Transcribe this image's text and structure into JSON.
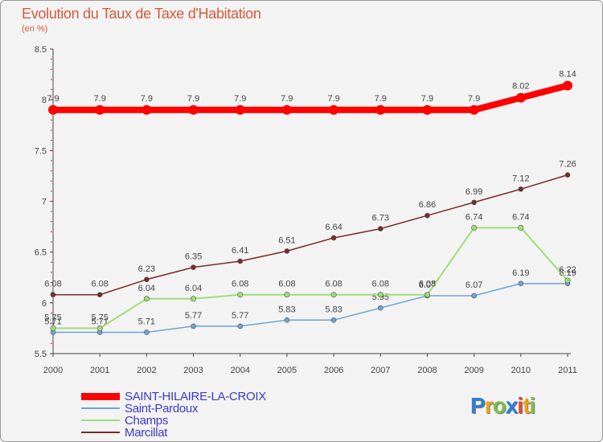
{
  "title": "Evolution du Taux de Taxe d'Habitation",
  "unit_label": "(en %)",
  "logo": [
    "P",
    "r",
    "o",
    "x",
    "i",
    "t",
    "i"
  ],
  "logo_colors": [
    "#2f7fd8",
    "#f2a01a",
    "#7cc04a",
    "#2f7fd8",
    "#e8463a",
    "#f2a01a",
    "#7cc04a"
  ],
  "chart_data": {
    "type": "line",
    "x": [
      "2000",
      "2001",
      "2002",
      "2003",
      "2004",
      "2005",
      "2006",
      "2007",
      "2008",
      "2009",
      "2010",
      "2011"
    ],
    "ylim": [
      5.5,
      8.5
    ],
    "yticks": [
      "5.5",
      "6",
      "6.5",
      "7",
      "7.5",
      "8",
      "8.5"
    ],
    "grid": false,
    "legend_position": "bottom-left",
    "series": [
      {
        "name": "SAINT-HILAIRE-LA-CROIX",
        "color": "#ff0000",
        "values": [
          7.9,
          7.9,
          7.9,
          7.9,
          7.9,
          7.9,
          7.9,
          7.9,
          7.9,
          7.9,
          8.02,
          8.14
        ],
        "labels": [
          "7.9",
          "7.9",
          "7.9",
          "7.9",
          "7.9",
          "7.9",
          "7.9",
          "7.9",
          "7.9",
          "7.9",
          "8.02",
          "8.14"
        ]
      },
      {
        "name": "Saint-Pardoux",
        "color": "#6fa3d2",
        "values": [
          5.71,
          5.71,
          5.71,
          5.77,
          5.77,
          5.83,
          5.83,
          5.95,
          6.07,
          6.07,
          6.19,
          6.19
        ],
        "labels": [
          "5.71",
          "5.71",
          "5.71",
          "5.77",
          "5.77",
          "5.83",
          "5.83",
          "5.95",
          "6.07",
          "6.07",
          "6.19",
          "6.19"
        ]
      },
      {
        "name": "Champs",
        "color": "#9ede77",
        "values": [
          5.75,
          5.75,
          6.04,
          6.04,
          6.08,
          6.08,
          6.08,
          6.08,
          6.08,
          6.74,
          6.74,
          6.22
        ],
        "labels": [
          "5.75",
          "5.75",
          "6.04",
          "6.04",
          "6.08",
          "6.08",
          "6.08",
          "6.08",
          "6.08",
          "6.74",
          "6.74",
          "6.22"
        ]
      },
      {
        "name": "Marcillat",
        "color": "#7a2a2a",
        "values": [
          6.08,
          6.08,
          6.23,
          6.35,
          6.41,
          6.51,
          6.64,
          6.73,
          6.86,
          6.99,
          7.12,
          7.26
        ],
        "labels": [
          "6.08",
          "6.08",
          "6.23",
          "6.35",
          "6.41",
          "6.51",
          "6.64",
          "6.73",
          "6.86",
          "6.99",
          "7.12",
          "7.26"
        ]
      }
    ]
  }
}
